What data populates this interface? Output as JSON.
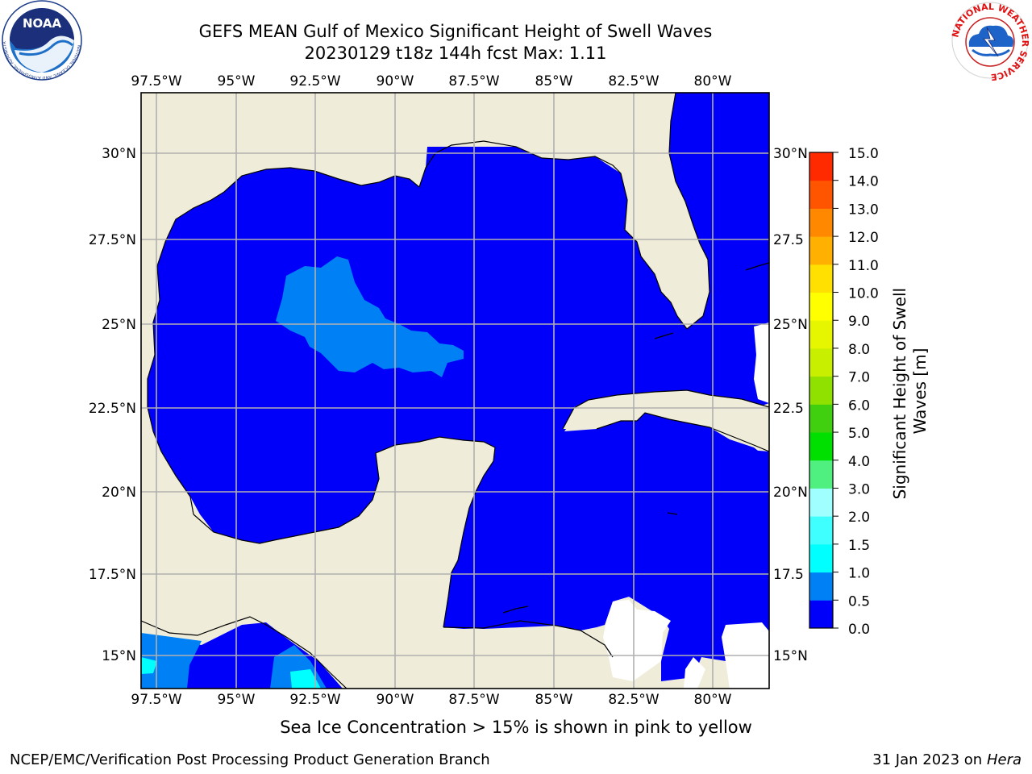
{
  "header": {
    "title_line1": "GEFS MEAN Gulf of Mexico Significant Height of Swell Waves",
    "title_line2": "20230129 t18z 144h fcst   Max: 1.11"
  },
  "map": {
    "lon_labels": [
      "97.5°W",
      "95°W",
      "92.5°W",
      "90°W",
      "87.5°W",
      "85°W",
      "82.5°W",
      "80°W"
    ],
    "lat_labels": [
      "30°N",
      "27.5°N",
      "25°N",
      "22.5°N",
      "20°N",
      "17.5°N",
      "15°N"
    ],
    "right_lat_labels": [
      "30°N",
      "27.5",
      "25°N",
      "22.5",
      "20°N",
      "17.5",
      "15°N"
    ],
    "colors": {
      "land": "#efedda",
      "water_low": "#0000fa",
      "water_mid": "#0080f5",
      "water_cyan": "#00ffff",
      "missing": "#ffffff",
      "grid": "#b0b0b0"
    }
  },
  "colorbar": {
    "label_line1": "Significant Height of Swell",
    "label_line2": "Waves [m]",
    "ticks": [
      "0.0",
      "0.5",
      "1.0",
      "1.5",
      "2.0",
      "3.0",
      "4.0",
      "5.0",
      "6.0",
      "7.0",
      "8.0",
      "9.0",
      "10.0",
      "11.0",
      "12.0",
      "13.0",
      "14.0",
      "15.0"
    ],
    "colors": [
      "#0000fa",
      "#0080f5",
      "#00ffff",
      "#40ffff",
      "#a0ffff",
      "#50f080",
      "#00e000",
      "#40d010",
      "#90e000",
      "#c8ee00",
      "#e6f500",
      "#ffff00",
      "#ffe000",
      "#ffb000",
      "#ff8800",
      "#ff5500",
      "#ff2a00"
    ]
  },
  "logos": {
    "noaa": "NOAA",
    "noaa_ring": "NATIONAL OCEANIC AND ATMOSPHERIC ADMINISTRATION · U.S. DEPARTMENT OF COMMERCE",
    "nws_ring": "NATIONAL WEATHER SERVICE"
  },
  "caption": "Sea Ice Concentration > 15% is shown in pink to yellow",
  "footer": {
    "left": "NCEP/EMC/Verification Post Processing Product Generation Branch",
    "right_prefix": "31 Jan 2023 on ",
    "right_host": "Hera"
  }
}
